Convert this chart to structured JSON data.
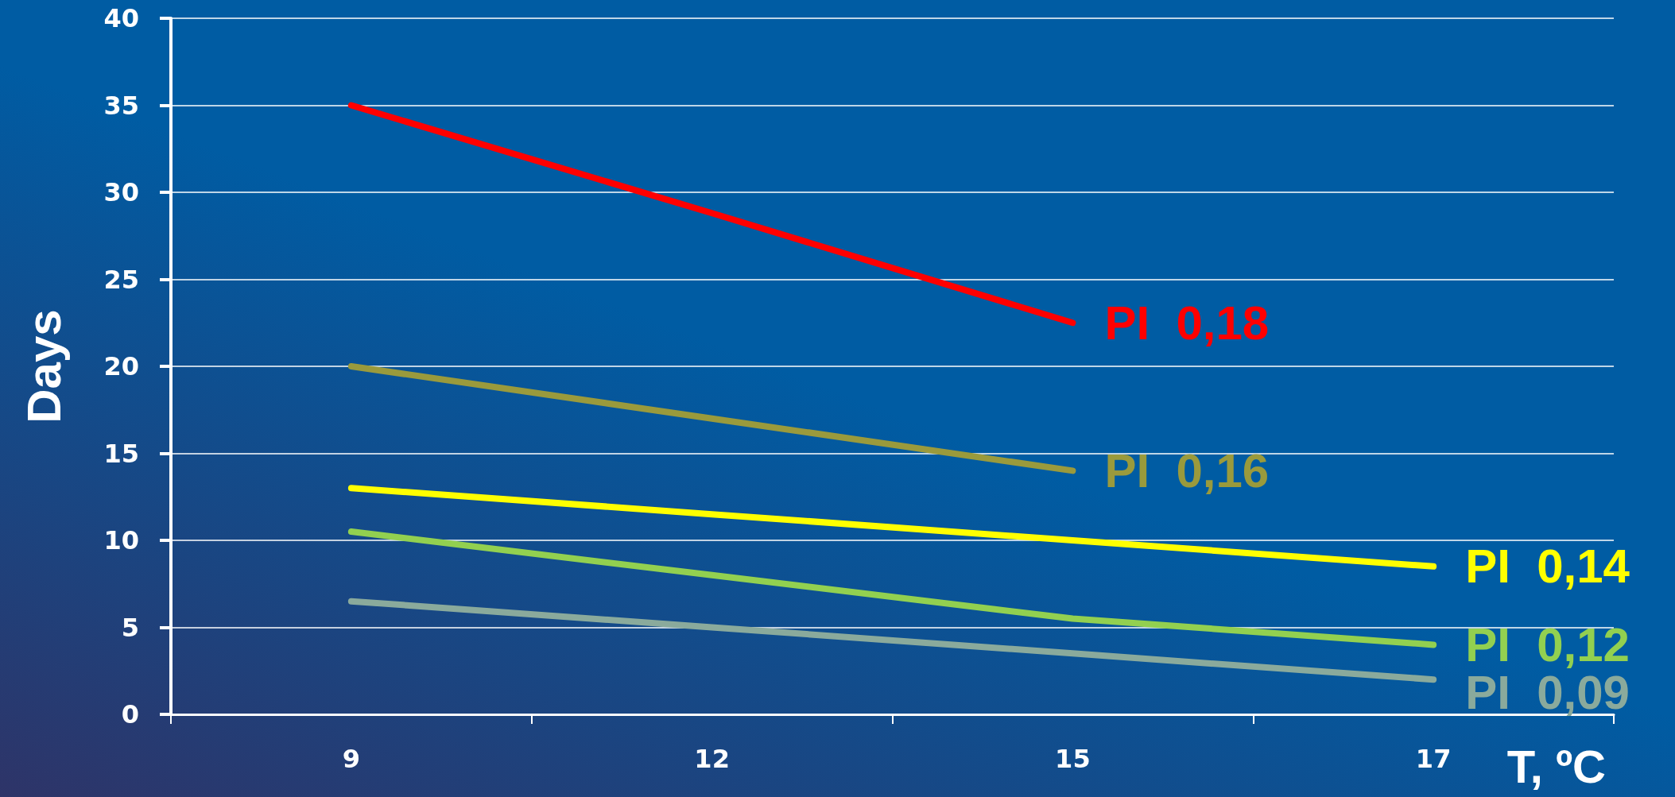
{
  "chart_data": {
    "type": "line",
    "xlabel": "T, ºC",
    "ylabel": "Days",
    "categories": [
      "9",
      "12",
      "15",
      "17"
    ],
    "series": [
      {
        "name": "PI  0,18",
        "color": "#ff0000",
        "values": [
          35,
          28.8,
          22.5,
          null
        ]
      },
      {
        "name": "PI  0,16",
        "color": "#9a9a3c",
        "values": [
          20,
          17,
          14,
          null
        ]
      },
      {
        "name": "PI  0,14",
        "color": "#ffff00",
        "values": [
          13,
          11.5,
          10,
          8.5
        ]
      },
      {
        "name": "PI  0,12",
        "color": "#92d050",
        "values": [
          10.5,
          8,
          5.5,
          4
        ]
      },
      {
        "name": "PI  0,09",
        "color": "#8aaa9c",
        "values": [
          6.5,
          5,
          3.5,
          2
        ]
      }
    ],
    "ylim": [
      0,
      40
    ],
    "yticks": [
      0,
      5,
      10,
      15,
      20,
      25,
      30,
      35,
      40
    ],
    "grid": "y",
    "legend": false,
    "marker": "none",
    "line_style": "solid"
  }
}
